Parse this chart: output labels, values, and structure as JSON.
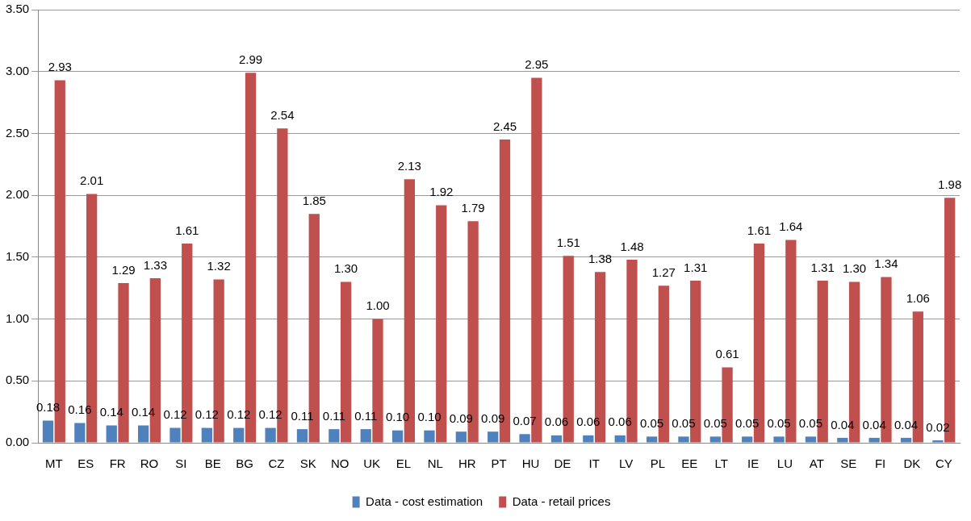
{
  "chart_data": {
    "type": "bar",
    "categories": [
      "MT",
      "ES",
      "FR",
      "RO",
      "SI",
      "BE",
      "BG",
      "CZ",
      "SK",
      "NO",
      "UK",
      "EL",
      "NL",
      "HR",
      "PT",
      "HU",
      "DE",
      "IT",
      "LV",
      "PL",
      "EE",
      "LT",
      "IE",
      "LU",
      "AT",
      "SE",
      "FI",
      "DK",
      "CY"
    ],
    "series": [
      {
        "name": "Data - cost estimation",
        "color": "#4f81bd",
        "values": [
          0.18,
          0.16,
          0.14,
          0.14,
          0.12,
          0.12,
          0.12,
          0.12,
          0.11,
          0.11,
          0.11,
          0.1,
          0.1,
          0.09,
          0.09,
          0.07,
          0.06,
          0.06,
          0.06,
          0.05,
          0.05,
          0.05,
          0.05,
          0.05,
          0.05,
          0.04,
          0.04,
          0.04,
          0.02
        ],
        "value_labels": [
          "0.18",
          "0.16",
          "0.14",
          "0.14",
          "0.12",
          "0.12",
          "0.12",
          "0.12",
          "0.11",
          "0.11",
          "0.11",
          "0.10",
          "0.10",
          "0.09",
          "0.09",
          "0.07",
          "0.06",
          "0.06",
          "0.06",
          "0.05",
          "0.05",
          "0.05",
          "0.05",
          "0.05",
          "0.05",
          "0.04",
          "0.04",
          "0.04",
          "0.02"
        ]
      },
      {
        "name": "Data - retail prices",
        "color": "#c0504d",
        "values": [
          2.93,
          2.01,
          1.29,
          1.33,
          1.61,
          1.32,
          2.99,
          2.54,
          1.85,
          1.3,
          1.0,
          2.13,
          1.92,
          1.79,
          2.45,
          2.95,
          1.51,
          1.38,
          1.48,
          1.27,
          1.31,
          0.61,
          1.61,
          1.64,
          1.31,
          1.3,
          1.34,
          1.06,
          1.98
        ],
        "value_labels": [
          "2.93",
          "2.01",
          "1.29",
          "1.33",
          "1.61",
          "1.32",
          "2.99",
          "2.54",
          "1.85",
          "1.30",
          "1.00",
          "2.13",
          "1.92",
          "1.79",
          "2.45",
          "2.95",
          "1.51",
          "1.38",
          "1.48",
          "1.27",
          "1.31",
          "0.61",
          "1.61",
          "1.64",
          "1.31",
          "1.30",
          "1.34",
          "1.06",
          "1.98"
        ]
      }
    ],
    "ylim": [
      0,
      3.5
    ],
    "yticks": [
      {
        "value": 0,
        "label": "0.00"
      },
      {
        "value": 0.5,
        "label": "0.50"
      },
      {
        "value": 1,
        "label": "1.00"
      },
      {
        "value": 1.5,
        "label": "1.50"
      },
      {
        "value": 2,
        "label": "2.00"
      },
      {
        "value": 2.5,
        "label": "2.50"
      },
      {
        "value": 3,
        "label": "3.00"
      },
      {
        "value": 3.5,
        "label": "3.50"
      }
    ],
    "grid": "y",
    "legend": "bottom"
  }
}
